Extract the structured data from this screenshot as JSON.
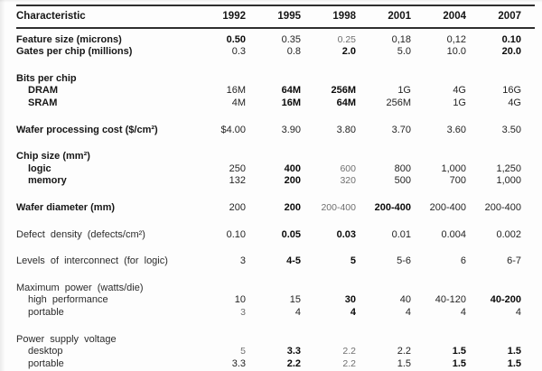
{
  "table": {
    "header": {
      "label": "Characteristic",
      "years": [
        "1992",
        "1995",
        "1998",
        "2001",
        "2004",
        "2007"
      ]
    },
    "rows": [
      {
        "kind": "data",
        "label": "Feature size (microns)",
        "indent": 0,
        "bold_label": true,
        "gap": false,
        "values": [
          "0.50",
          "0.35",
          "0.25",
          "0,18",
          "0,12",
          "0.10"
        ],
        "weights": [
          2,
          1,
          0,
          1,
          1,
          2
        ]
      },
      {
        "kind": "data",
        "label": "Gates per chip (millions)",
        "indent": 0,
        "bold_label": true,
        "gap": false,
        "values": [
          "0.3",
          "0.8",
          "2.0",
          "5.0",
          "10.0",
          "20.0"
        ],
        "weights": [
          1,
          1,
          2,
          1,
          1,
          2
        ]
      },
      {
        "kind": "section",
        "label": "Bits per chip",
        "indent": 0,
        "bold_label": true,
        "gap": true,
        "values": [],
        "weights": []
      },
      {
        "kind": "data",
        "label": "DRAM",
        "indent": 1,
        "bold_label": true,
        "gap": false,
        "values": [
          "16M",
          "64M",
          "256M",
          "1G",
          "4G",
          "16G"
        ],
        "weights": [
          1,
          2,
          2,
          1,
          1,
          1
        ]
      },
      {
        "kind": "data",
        "label": "SRAM",
        "indent": 1,
        "bold_label": true,
        "gap": false,
        "values": [
          "4M",
          "16M",
          "64M",
          "256M",
          "1G",
          "4G"
        ],
        "weights": [
          1,
          2,
          2,
          1,
          1,
          1
        ]
      },
      {
        "kind": "data",
        "label": "Wafer processing cost ($/cm²)",
        "indent": 0,
        "bold_label": true,
        "gap": true,
        "values": [
          "$4.00",
          "3.90",
          "3.80",
          "3.70",
          "3.60",
          "3.50"
        ],
        "weights": [
          1,
          1,
          1,
          1,
          1,
          1
        ]
      },
      {
        "kind": "section",
        "label": "Chip size (mm²)",
        "indent": 0,
        "bold_label": true,
        "gap": true,
        "values": [],
        "weights": []
      },
      {
        "kind": "data",
        "label": "logic",
        "indent": 1,
        "bold_label": true,
        "gap": false,
        "values": [
          "250",
          "400",
          "600",
          "800",
          "1,000",
          "1,250"
        ],
        "weights": [
          1,
          2,
          0,
          1,
          1,
          1
        ]
      },
      {
        "kind": "data",
        "label": "memory",
        "indent": 1,
        "bold_label": true,
        "gap": false,
        "values": [
          "132",
          "200",
          "320",
          "500",
          "700",
          "1,000"
        ],
        "weights": [
          1,
          2,
          0,
          1,
          1,
          1
        ]
      },
      {
        "kind": "data",
        "label": "Wafer diameter (mm)",
        "indent": 0,
        "bold_label": true,
        "gap": true,
        "values": [
          "200",
          "200",
          "200-400",
          "200-400",
          "200-400",
          "200-400"
        ],
        "weights": [
          1,
          2,
          0,
          2,
          1,
          1
        ]
      },
      {
        "kind": "data",
        "label": "Defect density (defects/cm²)",
        "indent": 0,
        "bold_label": false,
        "gap": true,
        "values": [
          "0.10",
          "0.05",
          "0.03",
          "0.01",
          "0.004",
          "0.002"
        ],
        "weights": [
          1,
          2,
          2,
          1,
          1,
          1
        ]
      },
      {
        "kind": "data",
        "label": "Levels of interconnect (for logic)",
        "indent": 0,
        "bold_label": false,
        "gap": true,
        "values": [
          "3",
          "4-5",
          "5",
          "5-6",
          "6",
          "6-7"
        ],
        "weights": [
          1,
          2,
          2,
          1,
          1,
          1
        ]
      },
      {
        "kind": "section",
        "label": "Maximum power (watts/die)",
        "indent": 0,
        "bold_label": false,
        "gap": true,
        "values": [],
        "weights": []
      },
      {
        "kind": "data",
        "label": "high performance",
        "indent": 1,
        "bold_label": false,
        "gap": false,
        "values": [
          "10",
          "15",
          "30",
          "40",
          "40-120",
          "40-200"
        ],
        "weights": [
          1,
          1,
          2,
          1,
          1,
          2
        ]
      },
      {
        "kind": "data",
        "label": "portable",
        "indent": 1,
        "bold_label": false,
        "gap": false,
        "values": [
          "3",
          "4",
          "4",
          "4",
          "4",
          "4"
        ],
        "weights": [
          0,
          1,
          2,
          1,
          1,
          1
        ]
      },
      {
        "kind": "section",
        "label": "Power supply voltage",
        "indent": 0,
        "bold_label": false,
        "gap": true,
        "values": [],
        "weights": []
      },
      {
        "kind": "data",
        "label": "desktop",
        "indent": 1,
        "bold_label": false,
        "gap": false,
        "values": [
          "5",
          "3.3",
          "2.2",
          "2.2",
          "1.5",
          "1.5"
        ],
        "weights": [
          0,
          2,
          0,
          1,
          2,
          2
        ]
      },
      {
        "kind": "data",
        "label": "portable",
        "indent": 1,
        "bold_label": false,
        "gap": false,
        "values": [
          "3.3",
          "2.2",
          "2.2",
          "1.5",
          "1.5",
          "1.5"
        ],
        "weights": [
          1,
          2,
          0,
          1,
          2,
          2
        ]
      }
    ]
  }
}
